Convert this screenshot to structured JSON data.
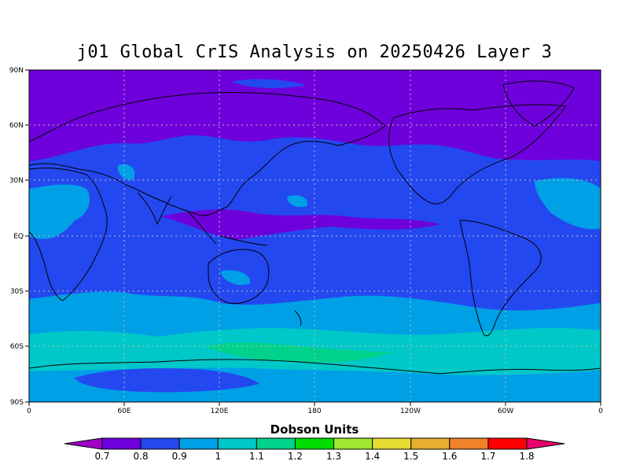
{
  "title": "j01 Global CrIS Analysis on 20250426 Layer 3",
  "map": {
    "lat_labels": [
      "90N",
      "60N",
      "30N",
      "EQ",
      "30S",
      "60S",
      "90S"
    ],
    "lon_labels": [
      "0",
      "60E",
      "120E",
      "180",
      "120W",
      "60W",
      "0"
    ],
    "background_color": "#2448f0",
    "grid": "dotted"
  },
  "colorbar": {
    "title": "Dobson Units",
    "labels": [
      "0.7",
      "0.8",
      "0.9",
      "1",
      "1.1",
      "1.2",
      "1.3",
      "1.4",
      "1.5",
      "1.6",
      "1.7",
      "1.8"
    ],
    "colors": [
      "#a000c8",
      "#6e00dc",
      "#2448f0",
      "#00a0e6",
      "#00c8c8",
      "#00d28c",
      "#00dc00",
      "#a0e632",
      "#e6dc32",
      "#e6af2d",
      "#f08228",
      "#fa0000",
      "#e6006e"
    ]
  }
}
